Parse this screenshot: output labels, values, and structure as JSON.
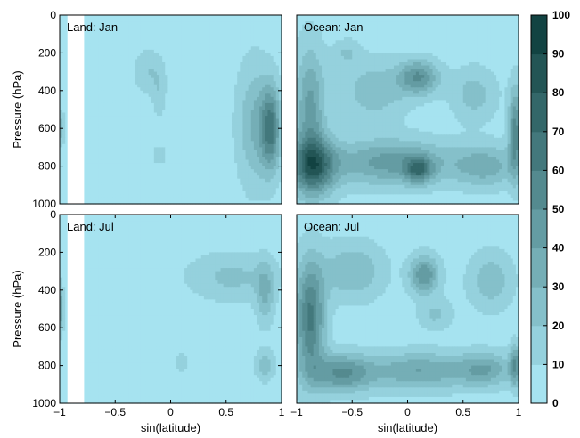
{
  "chart_data": [
    {
      "type": "heatmap",
      "panel_label": "Land: Jan",
      "xlabel": "",
      "ylabel": "Pressure (hPa)",
      "xlim": [
        -1,
        1
      ],
      "ylim": [
        1000,
        0
      ],
      "xticks": [],
      "yticks": [
        "0",
        "200",
        "400",
        "600",
        "800",
        "1000"
      ],
      "background_level": 5,
      "levels": [
        0,
        10,
        20,
        30,
        40,
        50,
        60,
        70,
        80,
        90,
        100
      ],
      "missing_band": {
        "x_from": -0.93,
        "x_to": -0.78
      },
      "blobs": [
        {
          "x": 0.9,
          "y": 600,
          "rx": 0.09,
          "ry": 220,
          "peak": 55
        },
        {
          "x": 0.75,
          "y": 580,
          "rx": 0.15,
          "ry": 320,
          "peak": 25
        },
        {
          "x": -0.2,
          "y": 300,
          "rx": 0.13,
          "ry": 110,
          "peak": 15
        },
        {
          "x": -0.1,
          "y": 420,
          "rx": 0.06,
          "ry": 120,
          "peak": 12
        },
        {
          "x": -0.1,
          "y": 740,
          "rx": 0.06,
          "ry": 50,
          "peak": 13
        },
        {
          "x": -1.0,
          "y": 600,
          "rx": 0.05,
          "ry": 90,
          "peak": 20
        }
      ]
    },
    {
      "type": "heatmap",
      "panel_label": "Ocean: Jan",
      "xlabel": "",
      "ylabel": "",
      "xlim": [
        -1,
        1
      ],
      "ylim": [
        1000,
        0
      ],
      "xticks": [],
      "yticks": [],
      "background_level": 5,
      "levels": [
        0,
        10,
        20,
        30,
        40,
        50,
        60,
        70,
        80,
        90,
        100
      ],
      "blobs": [
        {
          "x": -0.85,
          "y": 800,
          "rx": 0.2,
          "ry": 150,
          "peak": 65
        },
        {
          "x": -0.88,
          "y": 500,
          "rx": 0.13,
          "ry": 330,
          "peak": 38
        },
        {
          "x": -0.15,
          "y": 780,
          "rx": 0.55,
          "ry": 120,
          "peak": 40
        },
        {
          "x": 0.1,
          "y": 820,
          "rx": 0.12,
          "ry": 70,
          "peak": 45
        },
        {
          "x": 0.7,
          "y": 800,
          "rx": 0.28,
          "ry": 110,
          "peak": 30
        },
        {
          "x": 0.97,
          "y": 620,
          "rx": 0.06,
          "ry": 230,
          "peak": 50
        },
        {
          "x": 0.1,
          "y": 330,
          "rx": 0.18,
          "ry": 90,
          "peak": 45
        },
        {
          "x": -0.3,
          "y": 400,
          "rx": 0.3,
          "ry": 160,
          "peak": 22
        },
        {
          "x": 0.6,
          "y": 420,
          "rx": 0.2,
          "ry": 140,
          "peak": 20
        },
        {
          "x": -0.55,
          "y": 200,
          "rx": 0.12,
          "ry": 70,
          "peak": 15
        }
      ]
    },
    {
      "type": "heatmap",
      "panel_label": "Land: Jul",
      "xlabel": "sin(latitude)",
      "ylabel": "Pressure (hPa)",
      "xlim": [
        -1,
        1
      ],
      "ylim": [
        1000,
        0
      ],
      "xticks": [
        "−1",
        "−0.5",
        "0",
        "0.5",
        "1"
      ],
      "yticks": [
        "0",
        "200",
        "400",
        "600",
        "800",
        "1000"
      ],
      "background_level": 5,
      "levels": [
        0,
        10,
        20,
        30,
        40,
        50,
        60,
        70,
        80,
        90,
        100
      ],
      "missing_band": {
        "x_from": -0.93,
        "x_to": -0.78
      },
      "blobs": [
        {
          "x": 0.55,
          "y": 330,
          "rx": 0.38,
          "ry": 120,
          "peak": 18
        },
        {
          "x": 0.85,
          "y": 420,
          "rx": 0.08,
          "ry": 160,
          "peak": 25
        },
        {
          "x": 0.85,
          "y": 800,
          "rx": 0.08,
          "ry": 80,
          "peak": 22
        },
        {
          "x": 0.1,
          "y": 780,
          "rx": 0.05,
          "ry": 50,
          "peak": 13
        },
        {
          "x": -1.0,
          "y": 500,
          "rx": 0.04,
          "ry": 120,
          "peak": 35
        }
      ]
    },
    {
      "type": "heatmap",
      "panel_label": "Ocean: Jul",
      "xlabel": "sin(latitude)",
      "ylabel": "",
      "xlim": [
        -1,
        1
      ],
      "ylim": [
        1000,
        0
      ],
      "xticks": [
        "−1",
        "−0.5",
        "0",
        "0.5",
        "1"
      ],
      "yticks": [],
      "background_level": 5,
      "levels": [
        0,
        10,
        20,
        30,
        40,
        50,
        60,
        70,
        80,
        90,
        100
      ],
      "blobs": [
        {
          "x": -0.88,
          "y": 550,
          "rx": 0.13,
          "ry": 300,
          "peak": 58
        },
        {
          "x": -0.6,
          "y": 840,
          "rx": 0.28,
          "ry": 100,
          "peak": 45
        },
        {
          "x": 0.1,
          "y": 830,
          "rx": 0.45,
          "ry": 100,
          "peak": 35
        },
        {
          "x": 0.7,
          "y": 820,
          "rx": 0.25,
          "ry": 90,
          "peak": 32
        },
        {
          "x": 0.97,
          "y": 800,
          "rx": 0.05,
          "ry": 110,
          "peak": 40
        },
        {
          "x": 0.15,
          "y": 320,
          "rx": 0.13,
          "ry": 100,
          "peak": 45
        },
        {
          "x": -0.5,
          "y": 300,
          "rx": 0.28,
          "ry": 150,
          "peak": 25
        },
        {
          "x": 0.75,
          "y": 350,
          "rx": 0.2,
          "ry": 150,
          "peak": 22
        },
        {
          "x": 0.25,
          "y": 530,
          "rx": 0.15,
          "ry": 80,
          "peak": 17
        }
      ]
    }
  ],
  "colorbar": {
    "ticks": [
      "0",
      "10",
      "20",
      "30",
      "40",
      "50",
      "60",
      "70",
      "80",
      "90",
      "100"
    ],
    "range": [
      0,
      100
    ],
    "color_low": "#aeecfa",
    "color_high": "#0a3a38"
  }
}
